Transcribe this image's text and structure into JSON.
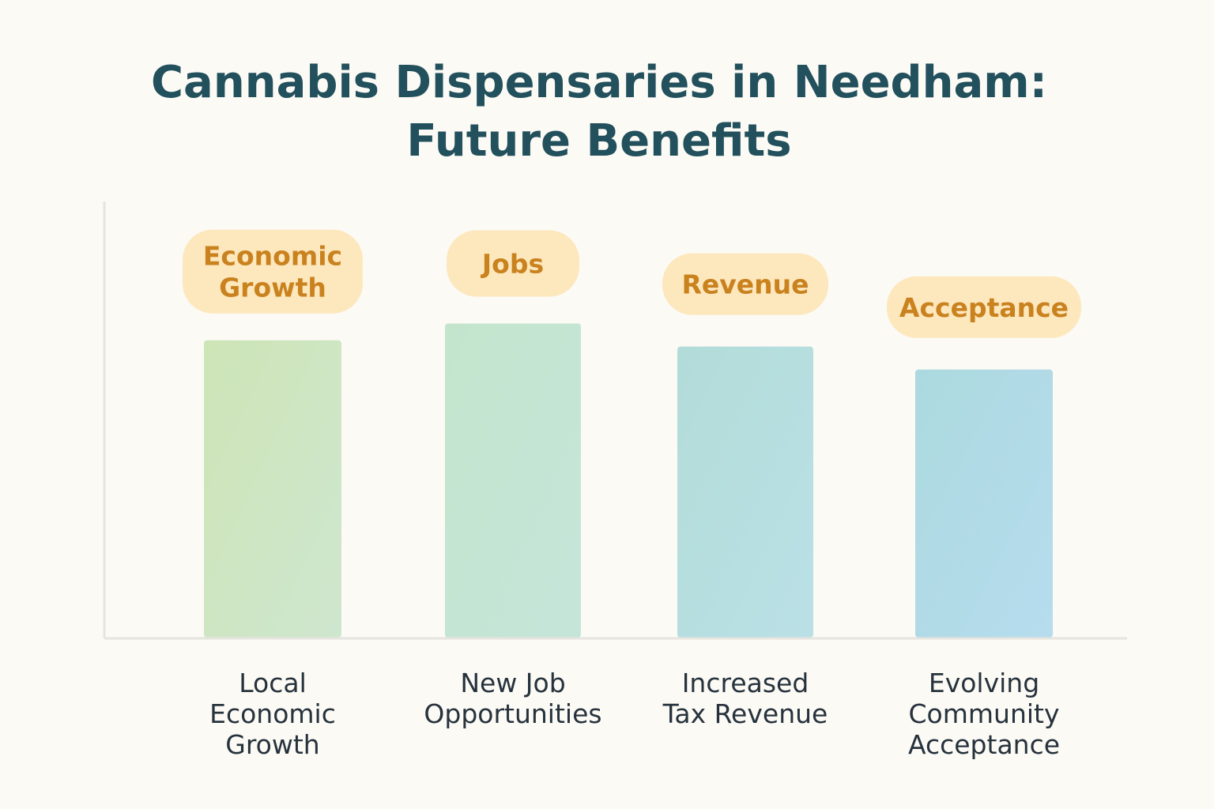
{
  "chart_data": {
    "type": "bar",
    "title": [
      "Cannabis Dispensaries in Needham:",
      "Future Benefits"
    ],
    "xlabel": "",
    "ylabel": "",
    "ylim": [
      0,
      100
    ],
    "grid": false,
    "categories": [
      [
        "Local",
        "Economic",
        "Growth"
      ],
      [
        "New Job",
        "Opportunities"
      ],
      [
        "Increased",
        "Tax Revenue"
      ],
      [
        "Evolving",
        "Community",
        "Acceptance"
      ]
    ],
    "values": [
      71,
      75,
      69.5,
      64
    ],
    "annotations": [
      [
        "Economic",
        "Growth"
      ],
      [
        "Jobs"
      ],
      [
        "Revenue"
      ],
      [
        "Acceptance"
      ]
    ],
    "bar_colors": [
      [
        "#cde5b6",
        "#cfe6cf"
      ],
      [
        "#c4e5cc",
        "#c5e5da"
      ],
      [
        "#b2dcd8",
        "#bae0e6"
      ],
      [
        "#acd9df",
        "#b6dcee"
      ]
    ],
    "label_fill": "#fde7bd",
    "label_text_color": "#c9821e",
    "title_color": "#22505c"
  }
}
